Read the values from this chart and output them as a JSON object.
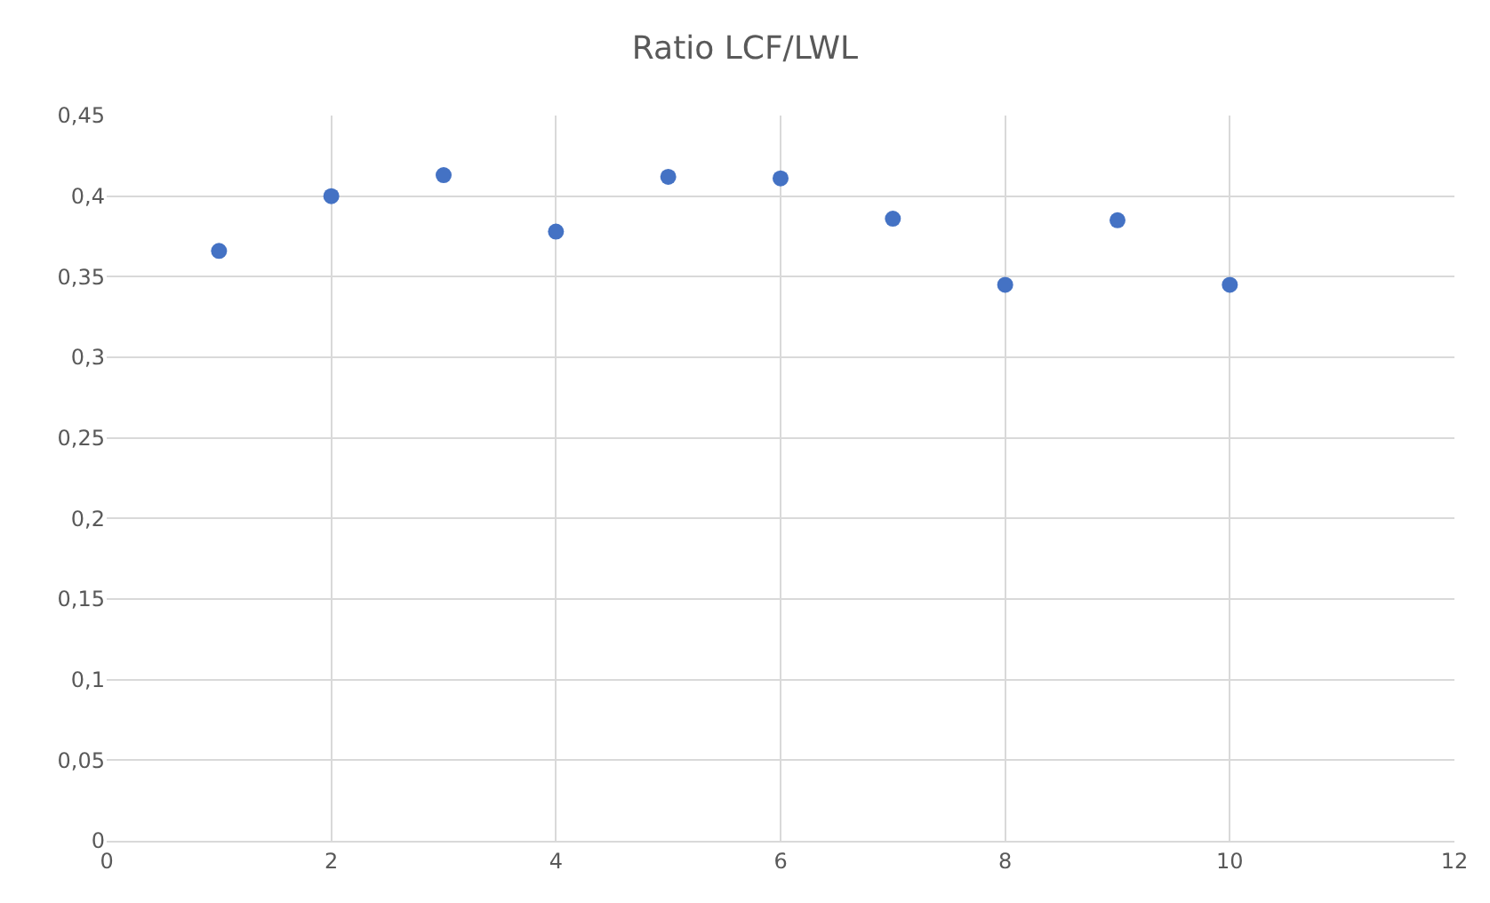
{
  "chart_data": {
    "type": "scatter",
    "title": "Ratio LCF/LWL",
    "x": [
      1,
      2,
      3,
      4,
      5,
      6,
      7,
      8,
      9,
      10
    ],
    "series": [
      {
        "color": "#4472c4",
        "values": [
          0.366,
          0.4,
          0.413,
          0.378,
          0.412,
          0.411,
          0.386,
          0.345,
          0.385,
          0.345
        ]
      }
    ],
    "xlim": [
      0,
      12
    ],
    "xticks": [
      0,
      2,
      4,
      6,
      8,
      10,
      12
    ],
    "ylim": [
      0,
      0.45
    ],
    "yticks": [
      0,
      {
        "value": 0.05,
        "label": "0,05"
      },
      {
        "value": 0.1,
        "label": "0,1"
      },
      {
        "value": 0.15,
        "label": "0,15"
      },
      {
        "value": 0.2,
        "label": "0,2"
      },
      {
        "value": 0.25,
        "label": "0,25"
      },
      {
        "value": 0.3,
        "label": "0,3"
      },
      {
        "value": 0.35,
        "label": "0,35"
      },
      {
        "value": 0.4,
        "label": "0,4"
      },
      {
        "value": 0.45,
        "label": "0,45"
      }
    ],
    "grid": true,
    "marker": "circle"
  }
}
